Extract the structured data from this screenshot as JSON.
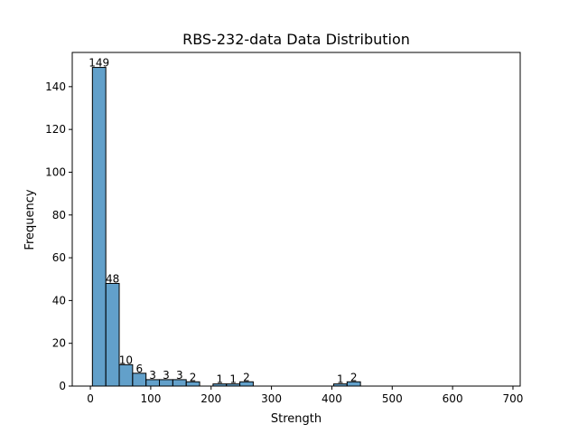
{
  "chart_data": {
    "type": "bar",
    "title": "RBS-232-data Data Distribution",
    "xlabel": "Strength",
    "ylabel": "Frequency",
    "bin_width": 22.2,
    "bins": [
      {
        "start": 3.4,
        "count": 149,
        "label": "149"
      },
      {
        "start": 25.6,
        "count": 48,
        "label": "48"
      },
      {
        "start": 47.8,
        "count": 10,
        "label": "10"
      },
      {
        "start": 70.0,
        "count": 6,
        "label": "6"
      },
      {
        "start": 92.2,
        "count": 3,
        "label": "3"
      },
      {
        "start": 114.4,
        "count": 3,
        "label": "3"
      },
      {
        "start": 136.6,
        "count": 3,
        "label": "3"
      },
      {
        "start": 158.8,
        "count": 2,
        "label": "2"
      },
      {
        "start": 181.0,
        "count": 0,
        "label": ""
      },
      {
        "start": 203.2,
        "count": 1,
        "label": "1"
      },
      {
        "start": 225.4,
        "count": 1,
        "label": "1"
      },
      {
        "start": 247.6,
        "count": 2,
        "label": "2"
      },
      {
        "start": 269.8,
        "count": 0,
        "label": ""
      },
      {
        "start": 292.0,
        "count": 0,
        "label": ""
      },
      {
        "start": 314.2,
        "count": 0,
        "label": ""
      },
      {
        "start": 336.4,
        "count": 0,
        "label": ""
      },
      {
        "start": 358.6,
        "count": 0,
        "label": ""
      },
      {
        "start": 380.8,
        "count": 0,
        "label": ""
      },
      {
        "start": 403.0,
        "count": 1,
        "label": "1"
      },
      {
        "start": 425.2,
        "count": 2,
        "label": "2"
      }
    ],
    "xlim": [
      -30,
      712
    ],
    "ylim": [
      0,
      156
    ],
    "xticks": [
      0,
      100,
      200,
      300,
      400,
      500,
      600,
      700
    ],
    "yticks": [
      0,
      20,
      40,
      60,
      80,
      100,
      120,
      140
    ],
    "bar_color": "#1f77b4",
    "grid": false
  }
}
